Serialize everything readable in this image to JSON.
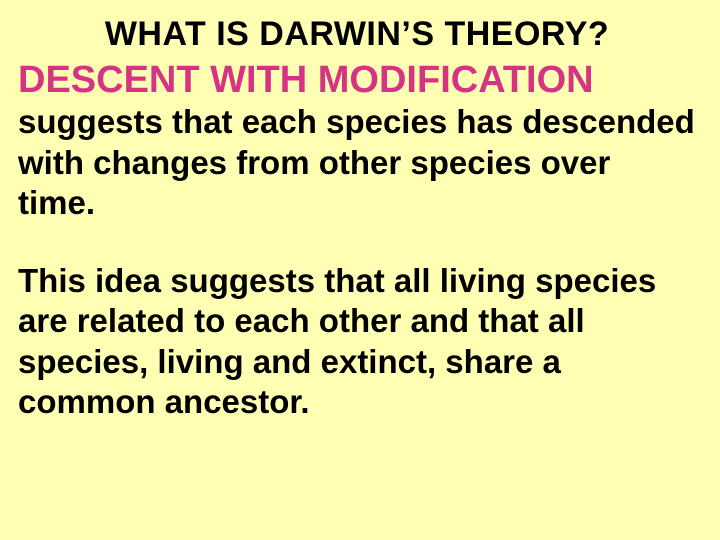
{
  "background_color": "#ffffb3",
  "title_color": "#000000",
  "subtitle_color": "#d63384",
  "body_color": "#000000",
  "font_family": "Comic Sans MS",
  "title": "WHAT IS DARWIN’S THEORY?",
  "subtitle": "DESCENT WITH MODIFICATION",
  "paragraph1": "suggests that each species has descended with changes from other species over time.",
  "paragraph2": "This idea suggests that all living species are related to each other and that all species, living and extinct, share a common ancestor.",
  "title_fontsize": 34,
  "subtitle_fontsize": 38,
  "body_fontsize": 33
}
